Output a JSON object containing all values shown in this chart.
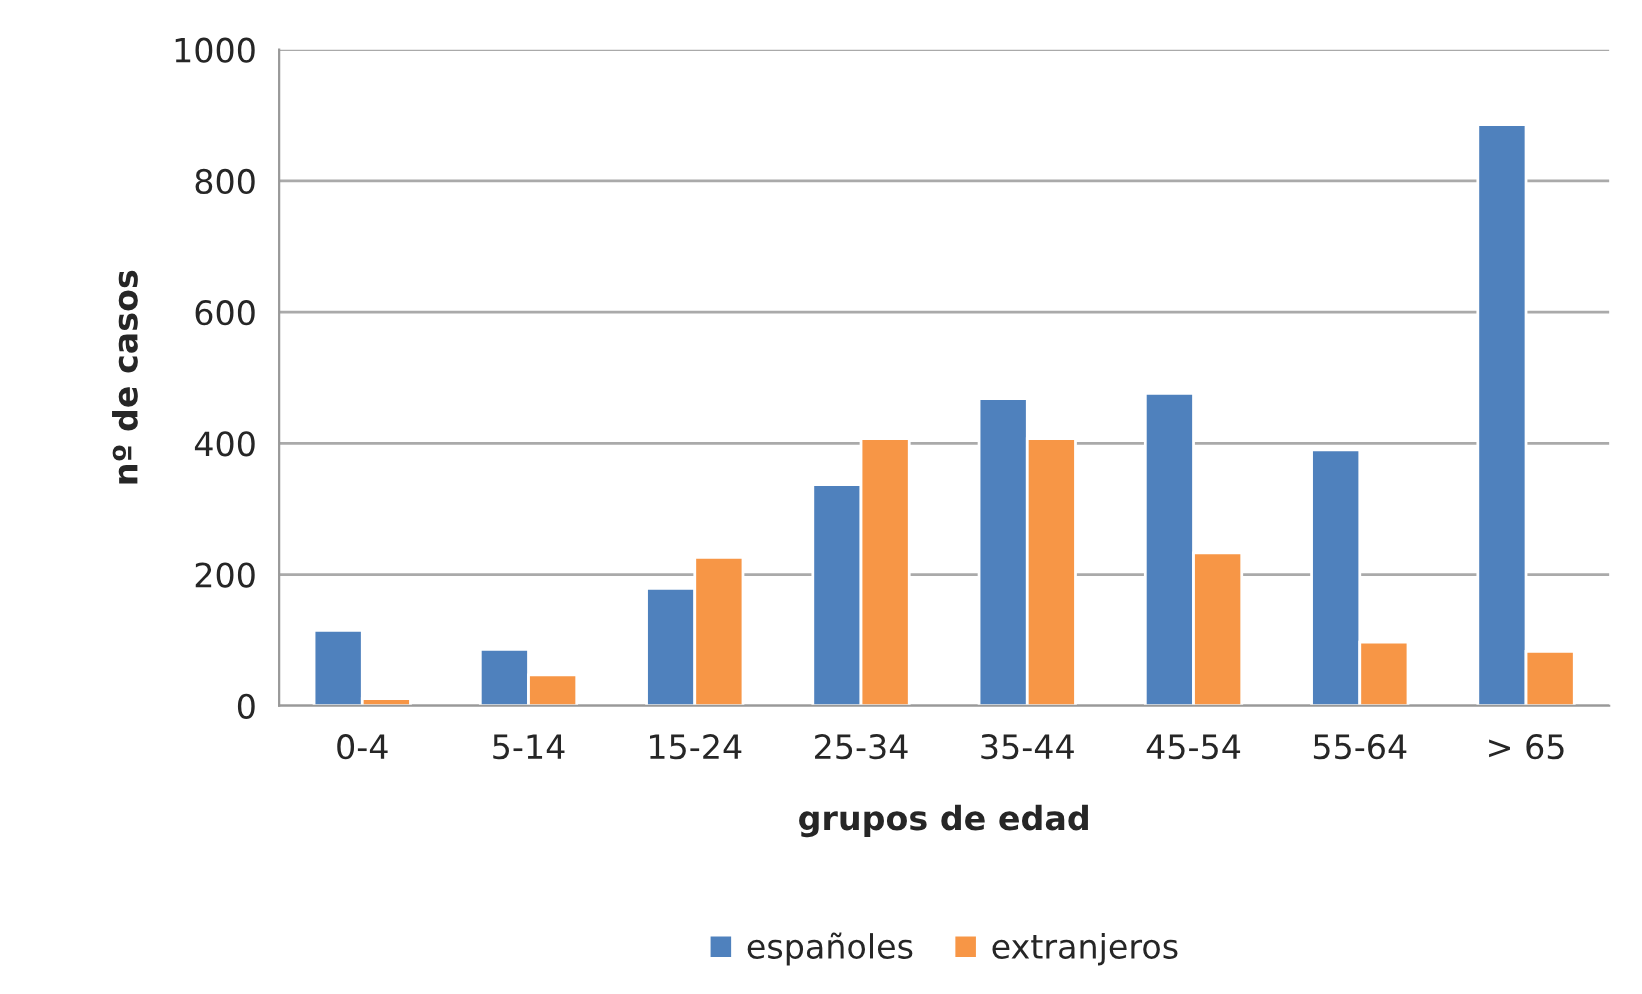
{
  "chart_data": {
    "type": "bar",
    "xlabel": "grupos de edad",
    "ylabel": "nº de casos",
    "categories": [
      "0-4",
      "5-14",
      "15-24",
      "25-34",
      "35-44",
      "45-54",
      "55-64",
      "> 65"
    ],
    "series": [
      {
        "name": "españoles",
        "color": "#4f81bd",
        "values": [
          115,
          86,
          179,
          337,
          468,
          476,
          390,
          886
        ]
      },
      {
        "name": "extranjeros",
        "color": "#f79646",
        "values": [
          11,
          47,
          226,
          407,
          407,
          233,
          97,
          83
        ]
      }
    ],
    "ylim": [
      0,
      1000
    ],
    "yticks": [
      0,
      200,
      400,
      600,
      800,
      1000
    ],
    "grid": "y",
    "legend": "bottom"
  }
}
